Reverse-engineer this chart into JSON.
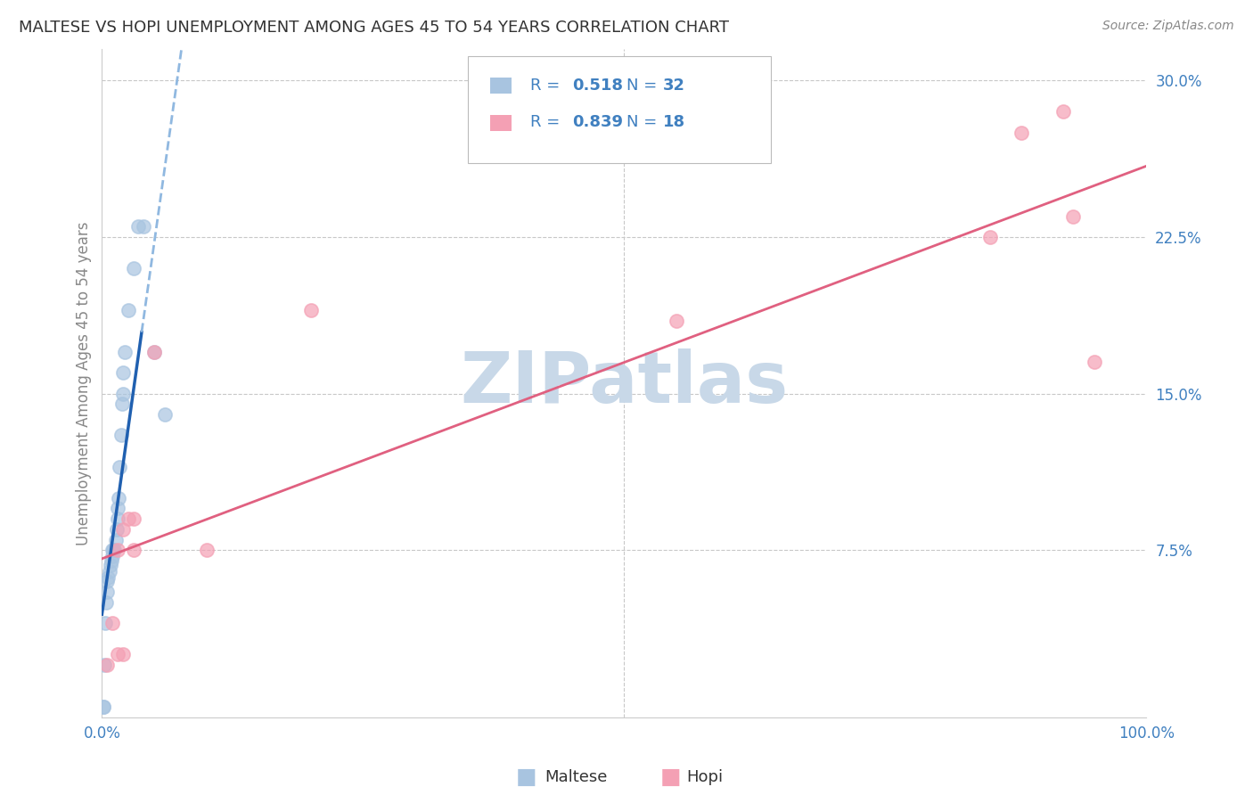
{
  "title": "MALTESE VS HOPI UNEMPLOYMENT AMONG AGES 45 TO 54 YEARS CORRELATION CHART",
  "source": "Source: ZipAtlas.com",
  "ylabel": "Unemployment Among Ages 45 to 54 years",
  "maltese_R": 0.518,
  "maltese_N": 32,
  "hopi_R": 0.839,
  "hopi_N": 18,
  "maltese_color": "#a8c4e0",
  "hopi_color": "#f4a0b4",
  "maltese_line_solid_color": "#2060b0",
  "maltese_line_dash_color": "#90b8e0",
  "hopi_line_color": "#e06080",
  "background_color": "#ffffff",
  "grid_color": "#c8c8c8",
  "xlim": [
    0,
    1.0
  ],
  "ylim": [
    -0.005,
    0.315
  ],
  "xticks": [
    0.0,
    0.1,
    0.2,
    0.3,
    0.4,
    0.5,
    0.6,
    0.7,
    0.8,
    0.9,
    1.0
  ],
  "xticklabels": [
    "0.0%",
    "",
    "",
    "",
    "",
    "",
    "",
    "",
    "",
    "",
    "100.0%"
  ],
  "ytick_positions": [
    0.075,
    0.15,
    0.225,
    0.3
  ],
  "yticklabels": [
    "7.5%",
    "15.0%",
    "22.5%",
    "30.0%"
  ],
  "maltese_x": [
    0.001,
    0.002,
    0.003,
    0.004,
    0.005,
    0.005,
    0.006,
    0.007,
    0.008,
    0.009,
    0.01,
    0.01,
    0.011,
    0.012,
    0.013,
    0.014,
    0.015,
    0.015,
    0.016,
    0.017,
    0.018,
    0.019,
    0.02,
    0.02,
    0.022,
    0.025,
    0.03,
    0.035,
    0.04,
    0.05,
    0.06,
    0.001
  ],
  "maltese_y": [
    0.0,
    0.02,
    0.04,
    0.05,
    0.055,
    0.06,
    0.062,
    0.065,
    0.068,
    0.07,
    0.072,
    0.075,
    0.075,
    0.075,
    0.08,
    0.085,
    0.09,
    0.095,
    0.1,
    0.115,
    0.13,
    0.145,
    0.15,
    0.16,
    0.17,
    0.19,
    0.21,
    0.23,
    0.23,
    0.17,
    0.14,
    0.0
  ],
  "hopi_x": [
    0.005,
    0.01,
    0.015,
    0.02,
    0.025,
    0.03,
    0.05,
    0.1,
    0.2,
    0.55,
    0.85,
    0.88,
    0.92,
    0.93,
    0.95,
    0.02,
    0.03,
    0.015
  ],
  "hopi_y": [
    0.02,
    0.04,
    0.075,
    0.085,
    0.09,
    0.075,
    0.17,
    0.075,
    0.19,
    0.185,
    0.225,
    0.275,
    0.285,
    0.235,
    0.165,
    0.025,
    0.09,
    0.025
  ],
  "watermark": "ZIPatlas",
  "watermark_color": "#c8d8e8",
  "title_color": "#333333",
  "label_color": "#888888",
  "tick_color": "#4080c0",
  "legend_color": "#4080c0",
  "legend_R_label": "R = ",
  "legend_N_label": "  N = "
}
